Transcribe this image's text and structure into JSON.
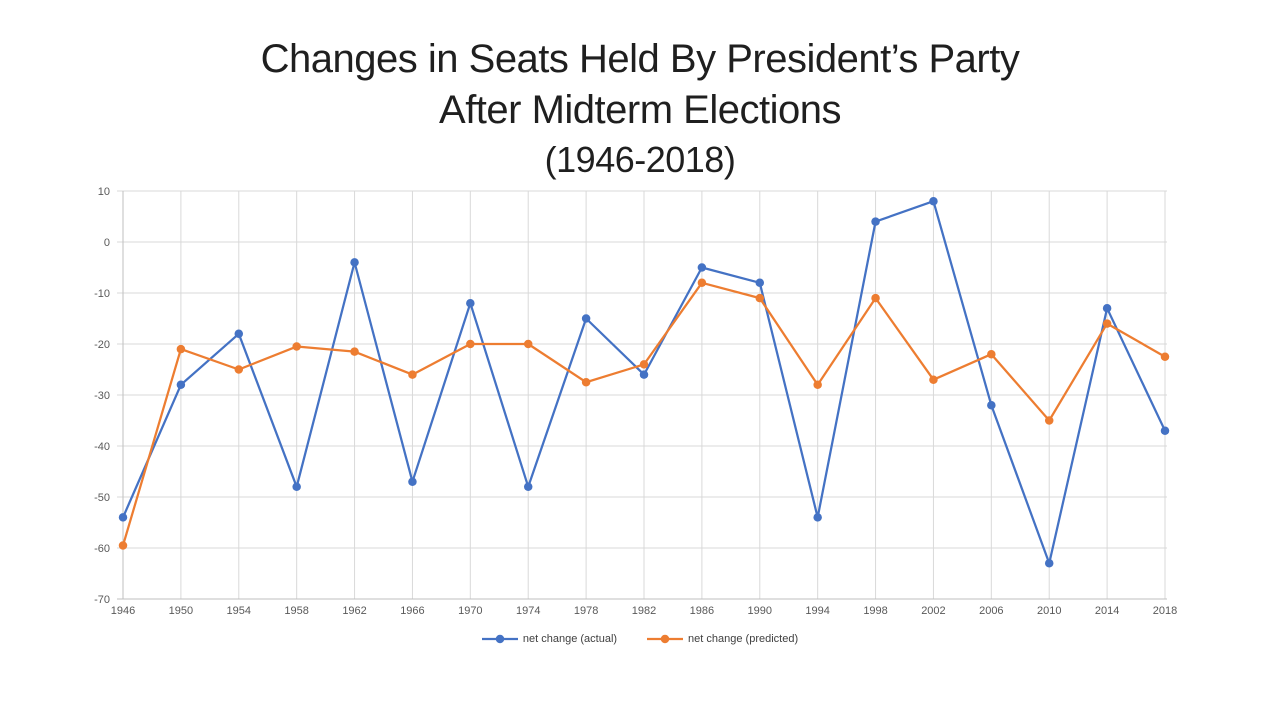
{
  "title": {
    "line1": "Changes in Seats Held By President’s Party",
    "line2": "After Midterm Elections",
    "line3": "(1946-2018)"
  },
  "chart_data": {
    "type": "line",
    "title": "Changes in Seats Held By President’s Party After Midterm Elections (1946-2018)",
    "categories": [
      1946,
      1950,
      1954,
      1958,
      1962,
      1966,
      1970,
      1974,
      1978,
      1982,
      1986,
      1990,
      1994,
      1998,
      2002,
      2006,
      2010,
      2014,
      2018
    ],
    "series": [
      {
        "name": "net change (actual)",
        "color": "#4472C4",
        "values": [
          -54,
          -28,
          -18,
          -48,
          -4,
          -47,
          -12,
          -48,
          -15,
          -26,
          -5,
          -8,
          -54,
          4,
          8,
          -32,
          -63,
          -13,
          -37
        ]
      },
      {
        "name": "net change (predicted)",
        "color": "#ED7D31",
        "values": [
          -59.5,
          -21,
          -25,
          -20.5,
          -21.5,
          -26,
          -20,
          -20,
          -27.5,
          -24,
          -8,
          -11,
          -28,
          -11,
          -27,
          -22,
          -35,
          -16,
          -22.5
        ]
      }
    ],
    "xlabel": "",
    "ylabel": "",
    "ylim": [
      -70,
      10
    ],
    "ytick_step": 10,
    "grid": true,
    "legend_position": "bottom",
    "colors": {
      "gridline": "#D9D9D9",
      "axis": "#BFBFBF",
      "tick_label": "#595959",
      "title_text": "#1f1f1f"
    }
  }
}
